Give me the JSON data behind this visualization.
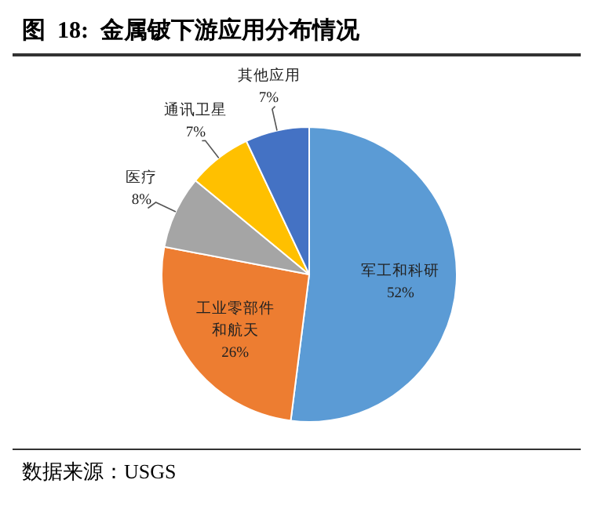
{
  "chart_data": {
    "type": "pie",
    "title": "图  18:  金属铍下游应用分布情况",
    "categories": [
      "军工和科研",
      "工业零部件和航天",
      "医疗",
      "通讯卫星",
      "其他应用"
    ],
    "values": [
      52,
      26,
      8,
      7,
      7
    ],
    "value_labels": [
      "52%",
      "26%",
      "8%",
      "7%",
      "7%"
    ],
    "colors": [
      "#5b9bd5",
      "#ed7d31",
      "#a5a5a5",
      "#ffc000",
      "#4472c4"
    ],
    "annotations": [
      "数据来源：USGS"
    ]
  }
}
